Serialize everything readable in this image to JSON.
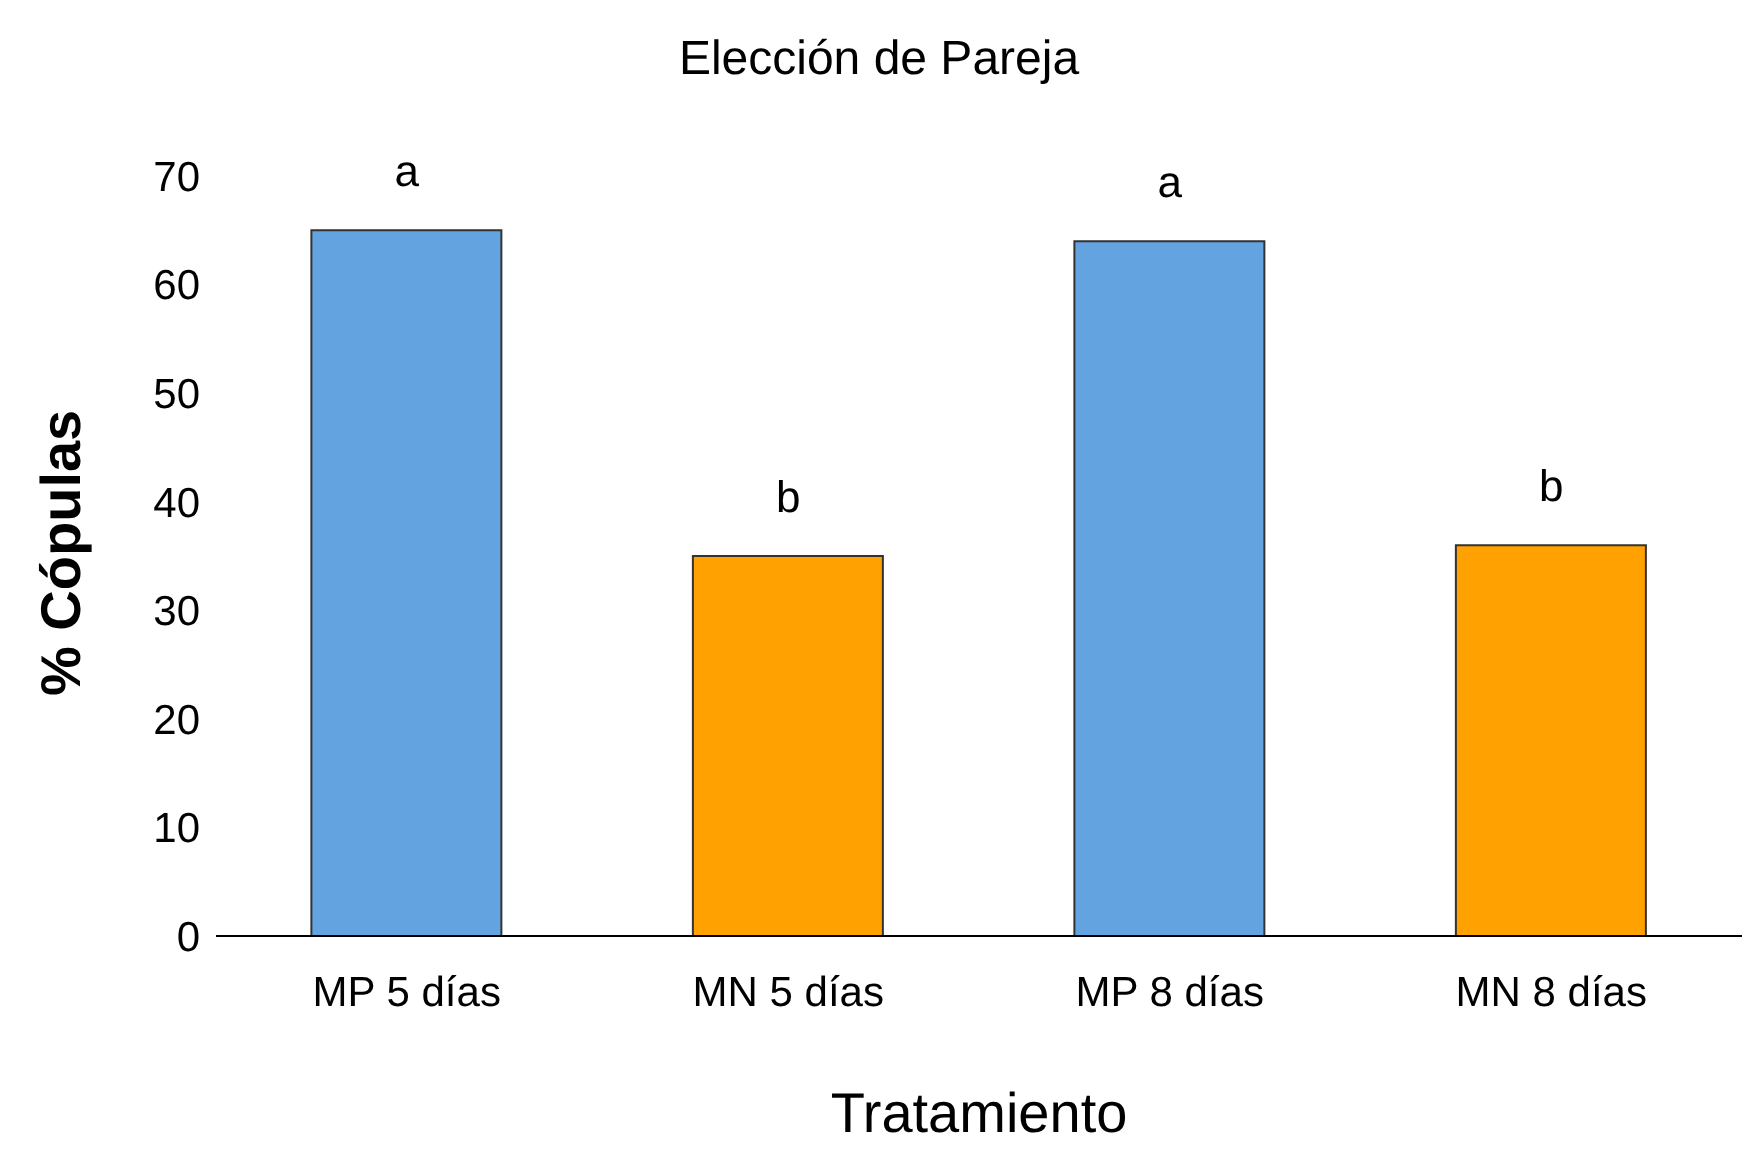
{
  "chart_data": {
    "type": "bar",
    "title": "Elección de Pareja",
    "xlabel": "Tratamiento",
    "ylabel": "%  Cópulas",
    "categories": [
      "MP 5 días",
      "MN 5 días",
      "MP 8 días",
      "MN 8 días"
    ],
    "values": [
      65,
      35,
      64,
      36
    ],
    "colors": [
      "#62a3e0",
      "#ffa100",
      "#62a3e0",
      "#ffa100"
    ],
    "ylim": [
      0,
      70
    ],
    "yticks": [
      0,
      10,
      20,
      30,
      40,
      50,
      60,
      70
    ],
    "grid": false,
    "legend": false,
    "annotations": [
      {
        "text": "a",
        "x": "MP 5 días",
        "y": 65
      },
      {
        "text": "b",
        "x": "MN 5 días",
        "y": 35
      },
      {
        "text": "a",
        "x": "MP 8 días",
        "y": 64
      },
      {
        "text": "b",
        "x": "MN 8 días",
        "y": 36
      }
    ]
  }
}
